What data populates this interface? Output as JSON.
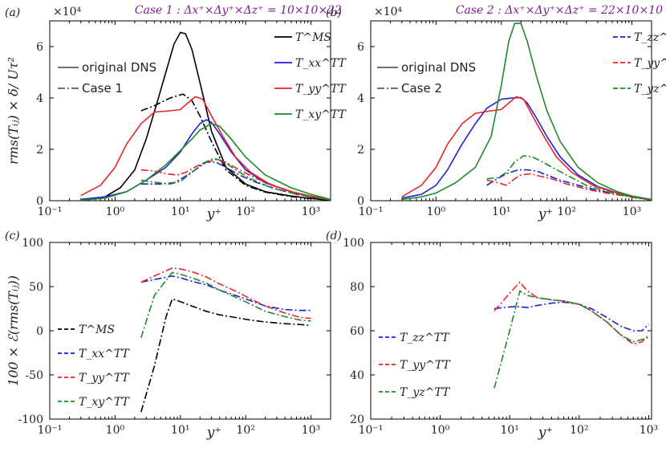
{
  "chart_data": [
    {
      "panel": "(a)",
      "type": "line",
      "title": "Case 1 : Δx⁺×Δy⁺×Δz⁺ = 10×10×22",
      "xlabel": "y⁺",
      "ylabel": "rms(Tᵢⱼ) × δ/ Uτ²",
      "y_multiplier": "×10⁴",
      "xscale": "log",
      "xlim": [
        0.1,
        2000
      ],
      "ylim": [
        0,
        7
      ],
      "xticks": [
        0.1,
        1,
        10,
        100,
        1000
      ],
      "xtick_labels": [
        "10⁻¹",
        "10⁰",
        "10¹",
        "10²",
        "10³"
      ],
      "yticks": [
        0,
        2,
        4,
        6
      ],
      "ytick_labels": [
        "0",
        "2",
        "4",
        "6"
      ],
      "style_legend": [
        {
          "label": "original DNS",
          "dash": "solid"
        },
        {
          "label": "Case 1",
          "dash": "dashdot"
        }
      ],
      "legend": [
        {
          "label": "T^MS",
          "color": "#000000"
        },
        {
          "label": "T_xx^TT",
          "color": "#1f1fd6"
        },
        {
          "label": "T_yy^TT",
          "color": "#e8262b"
        },
        {
          "label": "T_xy^TT",
          "color": "#1f8a2a"
        }
      ],
      "series": [
        {
          "name": "T^MS original DNS",
          "color": "#000000",
          "dash": "solid",
          "x": [
            0.3,
            0.7,
            1.2,
            2,
            3,
            4.5,
            6,
            8,
            10,
            12,
            15,
            20,
            30,
            50,
            100,
            200,
            500,
            1000,
            2000
          ],
          "y": [
            0.05,
            0.15,
            0.5,
            1.2,
            2.4,
            3.9,
            5.0,
            6.1,
            6.55,
            6.5,
            5.9,
            4.6,
            2.7,
            1.3,
            0.65,
            0.35,
            0.18,
            0.09,
            0.02
          ]
        },
        {
          "name": "T^MS Case 1",
          "color": "#000000",
          "dash": "dashdot",
          "x": [
            2.5,
            4,
            7,
            11,
            15,
            20,
            30,
            50,
            100,
            200,
            500,
            1000,
            2000
          ],
          "y": [
            3.5,
            3.7,
            4.0,
            4.15,
            3.9,
            3.3,
            2.3,
            1.2,
            0.6,
            0.33,
            0.16,
            0.08,
            0.02
          ]
        },
        {
          "name": "T_xx^TT original DNS",
          "color": "#1f1fd6",
          "dash": "solid",
          "x": [
            0.3,
            0.7,
            1.5,
            3,
            6,
            10,
            15,
            20,
            25,
            30,
            40,
            60,
            100,
            200,
            500,
            1000,
            2000
          ],
          "y": [
            0.05,
            0.15,
            0.35,
            0.8,
            1.3,
            1.9,
            2.6,
            3.0,
            3.15,
            3.05,
            2.6,
            1.9,
            1.2,
            0.7,
            0.35,
            0.15,
            0.03
          ]
        },
        {
          "name": "T_xx^TT Case 1",
          "color": "#1f1fd6",
          "dash": "dashdot",
          "x": [
            2.5,
            5,
            8,
            12,
            18,
            25,
            35,
            50,
            80,
            150,
            300,
            600,
            1000,
            2000
          ],
          "y": [
            0.65,
            0.65,
            0.7,
            0.95,
            1.25,
            1.5,
            1.5,
            1.3,
            1.0,
            0.7,
            0.45,
            0.25,
            0.15,
            0.03
          ]
        },
        {
          "name": "T_yy^TT original DNS",
          "color": "#e8262b",
          "dash": "solid",
          "x": [
            0.3,
            0.6,
            1,
            1.5,
            2.5,
            4,
            7,
            10,
            13,
            17,
            22,
            30,
            45,
            70,
            120,
            250,
            500,
            1000,
            2000
          ],
          "y": [
            0.2,
            0.6,
            1.3,
            2.2,
            3.0,
            3.45,
            3.5,
            3.55,
            3.8,
            4.05,
            3.95,
            3.3,
            2.5,
            1.7,
            1.1,
            0.6,
            0.35,
            0.18,
            0.05
          ]
        },
        {
          "name": "T_yy^TT Case 1",
          "color": "#e8262b",
          "dash": "dashdot",
          "x": [
            2.5,
            4,
            6,
            9,
            12,
            18,
            25,
            35,
            50,
            80,
            150,
            300,
            600,
            1000,
            2000
          ],
          "y": [
            1.2,
            1.15,
            1.05,
            1.0,
            1.1,
            1.35,
            1.5,
            1.6,
            1.5,
            1.2,
            0.85,
            0.55,
            0.3,
            0.15,
            0.03
          ]
        },
        {
          "name": "T_xy^TT original DNS",
          "color": "#1f8a2a",
          "dash": "solid",
          "x": [
            0.3,
            0.7,
            1.5,
            3,
            6,
            10,
            15,
            20,
            30,
            40,
            60,
            100,
            200,
            500,
            1000,
            2000
          ],
          "y": [
            0.02,
            0.1,
            0.35,
            0.8,
            1.4,
            1.95,
            2.4,
            2.75,
            3.0,
            2.9,
            2.4,
            1.7,
            1.0,
            0.5,
            0.25,
            0.05
          ]
        },
        {
          "name": "T_xy^TT Case 1",
          "color": "#1f8a2a",
          "dash": "dashdot",
          "x": [
            2.5,
            4,
            7,
            10,
            15,
            22,
            32,
            45,
            70,
            120,
            250,
            500,
            1000,
            2000
          ],
          "y": [
            0.8,
            0.72,
            0.65,
            0.75,
            1.1,
            1.45,
            1.65,
            1.55,
            1.2,
            0.85,
            0.5,
            0.3,
            0.15,
            0.03
          ]
        }
      ]
    },
    {
      "panel": "(b)",
      "type": "line",
      "title": "Case 2 : Δx⁺×Δy⁺×Δz⁺ = 22×10×10",
      "xlabel": "y⁺",
      "y_multiplier": "×10⁴",
      "xscale": "log",
      "xlim": [
        0.1,
        2000
      ],
      "ylim": [
        0,
        7
      ],
      "xticks": [
        0.1,
        1,
        10,
        100,
        1000
      ],
      "xtick_labels": [
        "10⁻¹",
        "10⁰",
        "10¹",
        "10²",
        "10³"
      ],
      "yticks": [
        0,
        2,
        4,
        6
      ],
      "ytick_labels": [
        "0",
        "2",
        "4",
        "6"
      ],
      "style_legend": [
        {
          "label": "original DNS",
          "dash": "solid"
        },
        {
          "label": "Case 2",
          "dash": "dashdot"
        }
      ],
      "legend": [
        {
          "label": "T_zz^TT",
          "color": "#1f1fd6"
        },
        {
          "label": "T_yy^TT",
          "color": "#e8262b"
        },
        {
          "label": "T_yz^TT",
          "color": "#1f8a2a"
        }
      ],
      "series": [
        {
          "name": "T_zz^TT original DNS",
          "color": "#1f1fd6",
          "dash": "solid",
          "x": [
            0.3,
            0.6,
            1,
            1.5,
            2.5,
            4,
            6,
            10,
            15,
            20,
            25,
            35,
            50,
            80,
            150,
            300,
            600,
            1000,
            2000
          ],
          "y": [
            0.1,
            0.25,
            0.6,
            1.2,
            2.2,
            3.0,
            3.6,
            3.95,
            4.0,
            4.02,
            3.8,
            3.2,
            2.5,
            1.7,
            1.0,
            0.55,
            0.3,
            0.15,
            0.03
          ]
        },
        {
          "name": "T_zz^TT Case 2",
          "color": "#1f1fd6",
          "dash": "dashdot",
          "x": [
            6,
            8,
            12,
            18,
            25,
            35,
            50,
            80,
            150,
            300,
            600,
            1000,
            2000
          ],
          "y": [
            0.6,
            0.8,
            1.05,
            1.2,
            1.2,
            1.15,
            1.0,
            0.8,
            0.6,
            0.4,
            0.25,
            0.15,
            0.03
          ]
        },
        {
          "name": "T_yy^TT original DNS",
          "color": "#e8262b",
          "dash": "solid",
          "x": [
            0.3,
            0.6,
            1,
            1.5,
            2.5,
            4,
            7,
            10,
            13,
            17,
            22,
            30,
            45,
            70,
            120,
            250,
            500,
            1000,
            2000
          ],
          "y": [
            0.15,
            0.6,
            1.3,
            2.2,
            3.0,
            3.4,
            3.5,
            3.55,
            3.8,
            4.05,
            3.95,
            3.3,
            2.5,
            1.7,
            1.1,
            0.6,
            0.35,
            0.18,
            0.05
          ]
        },
        {
          "name": "T_yy^TT Case 2",
          "color": "#e8262b",
          "dash": "dashdot",
          "x": [
            6,
            9,
            12,
            16,
            20,
            28,
            40,
            60,
            100,
            200,
            400,
            800,
            1200,
            2000
          ],
          "y": [
            0.8,
            0.7,
            0.6,
            0.85,
            1.0,
            1.05,
            0.95,
            0.85,
            0.65,
            0.45,
            0.3,
            0.18,
            0.1,
            0.03
          ]
        },
        {
          "name": "T_yz^TT original DNS",
          "color": "#1f8a2a",
          "dash": "solid",
          "x": [
            0.3,
            0.6,
            1,
            2,
            4,
            7,
            10,
            13,
            16,
            20,
            25,
            35,
            50,
            80,
            150,
            300,
            600,
            1000,
            2000
          ],
          "y": [
            0.05,
            0.15,
            0.3,
            0.7,
            1.3,
            2.5,
            4.5,
            6.2,
            6.9,
            6.9,
            6.2,
            4.8,
            3.5,
            2.3,
            1.3,
            0.7,
            0.35,
            0.18,
            0.04
          ]
        },
        {
          "name": "T_yz^TT Case 2",
          "color": "#1f8a2a",
          "dash": "dashdot",
          "x": [
            6,
            9,
            12,
            16,
            22,
            30,
            40,
            60,
            100,
            200,
            500,
            1000,
            2000
          ],
          "y": [
            0.85,
            0.9,
            1.1,
            1.5,
            1.75,
            1.7,
            1.55,
            1.3,
            1.0,
            0.6,
            0.3,
            0.15,
            0.03
          ]
        }
      ]
    },
    {
      "panel": "(c)",
      "type": "line",
      "xlabel": "y⁺",
      "ylabel": "100 × ℰ(rms(Tᵢⱼ))",
      "xscale": "log",
      "xlim": [
        0.1,
        2000
      ],
      "ylim": [
        -100,
        100
      ],
      "xticks": [
        0.1,
        1,
        10,
        100,
        1000
      ],
      "xtick_labels": [
        "10⁻¹",
        "10⁰",
        "10¹",
        "10²",
        "10³"
      ],
      "yticks": [
        -100,
        -50,
        0,
        50,
        100
      ],
      "ytick_labels": [
        "-100",
        "-50",
        "0",
        "50",
        "100"
      ],
      "legend": [
        {
          "label": "T^MS",
          "color": "#000000"
        },
        {
          "label": "T_xx^TT",
          "color": "#1f1fd6"
        },
        {
          "label": "T_yy^TT",
          "color": "#e8262b"
        },
        {
          "label": "T_xy^TT",
          "color": "#1f8a2a"
        }
      ],
      "series": [
        {
          "name": "T^MS",
          "color": "#000000",
          "dash": "dashdot",
          "x": [
            2.5,
            4,
            6,
            7.5,
            10,
            15,
            25,
            40,
            70,
            120,
            200,
            400,
            700,
            1000
          ],
          "y": [
            -92,
            -40,
            15,
            36,
            33,
            28,
            22,
            18,
            15,
            12,
            10,
            8,
            7,
            6
          ]
        },
        {
          "name": "T_xx^TT",
          "color": "#1f1fd6",
          "dash": "dashdot",
          "x": [
            2.5,
            4,
            7.5,
            10,
            15,
            25,
            40,
            70,
            120,
            200,
            400,
            700,
            1000
          ],
          "y": [
            55,
            58,
            62,
            60,
            56,
            52,
            46,
            40,
            34,
            28,
            24,
            23,
            23
          ]
        },
        {
          "name": "T_yy^TT",
          "color": "#e8262b",
          "dash": "dashdot",
          "x": [
            2.5,
            4,
            7.5,
            10,
            15,
            25,
            40,
            70,
            120,
            200,
            400,
            700,
            1000
          ],
          "y": [
            55,
            62,
            71,
            70,
            67,
            61,
            53,
            45,
            36,
            28,
            20,
            15,
            14
          ]
        },
        {
          "name": "T_xy^TT",
          "color": "#1f8a2a",
          "dash": "dashdot",
          "x": [
            2.5,
            4,
            7.5,
            10,
            15,
            25,
            40,
            70,
            120,
            200,
            400,
            700,
            1000
          ],
          "y": [
            -8,
            40,
            66,
            64,
            60,
            54,
            46,
            38,
            30,
            22,
            16,
            12,
            11
          ]
        }
      ]
    },
    {
      "panel": "(d)",
      "type": "line",
      "xlabel": "y⁺",
      "xscale": "log",
      "xlim": [
        0.1,
        1100
      ],
      "ylim": [
        20,
        100
      ],
      "xticks": [
        0.1,
        1,
        10,
        100,
        1000
      ],
      "xtick_labels": [
        "10⁻¹",
        "10⁰",
        "10¹",
        "10²",
        "10³"
      ],
      "yticks": [
        20,
        40,
        60,
        80,
        100
      ],
      "ytick_labels": [
        "20",
        "40",
        "60",
        "80",
        "100"
      ],
      "legend": [
        {
          "label": "T_zz^TT",
          "color": "#1f1fd6"
        },
        {
          "label": "T_yy^TT",
          "color": "#e8262b"
        },
        {
          "label": "T_yz^TT",
          "color": "#1f8a2a"
        }
      ],
      "series": [
        {
          "name": "T_zz^TT",
          "color": "#1f1fd6",
          "dash": "dashdot",
          "x": [
            6,
            8,
            12,
            18,
            25,
            40,
            60,
            100,
            150,
            250,
            400,
            600,
            800,
            1000
          ],
          "y": [
            70,
            70.5,
            71,
            70.5,
            71.5,
            72.5,
            73,
            72,
            70,
            66,
            62,
            60,
            60,
            63
          ]
        },
        {
          "name": "T_yy^TT",
          "color": "#e8262b",
          "dash": "dashdot",
          "x": [
            6,
            10,
            14,
            18,
            25,
            40,
            60,
            100,
            150,
            250,
            400,
            600,
            800,
            1000
          ],
          "y": [
            69,
            77,
            82,
            78,
            75,
            74,
            73.5,
            72,
            69,
            64,
            58,
            54,
            55,
            58
          ]
        },
        {
          "name": "T_yz^TT",
          "color": "#1f8a2a",
          "dash": "dashdot",
          "x": [
            6,
            10,
            14,
            18,
            25,
            40,
            60,
            100,
            150,
            250,
            400,
            600,
            800,
            1000
          ],
          "y": [
            34,
            60,
            78,
            76,
            75,
            74,
            73.5,
            72,
            69,
            64,
            58,
            55,
            56,
            57
          ]
        }
      ]
    }
  ]
}
